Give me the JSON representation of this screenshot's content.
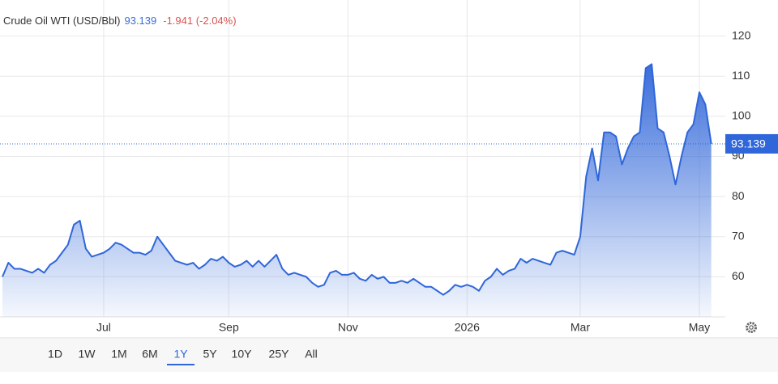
{
  "chart_data": {
    "type": "area",
    "title": "Crude Oil WTI (USD/Bbl)",
    "price": "93.139",
    "change": "-1.941 (-2.04%)",
    "color": "#2f66d9",
    "grid": true,
    "ylim": [
      50,
      129
    ],
    "yticks": [
      60,
      70,
      80,
      90,
      100,
      110,
      120
    ],
    "categories": [
      null,
      null,
      null,
      null,
      null,
      null,
      null,
      null,
      null,
      null,
      null,
      null,
      null,
      null,
      null,
      null,
      null,
      "Jul",
      null,
      null,
      null,
      null,
      null,
      null,
      null,
      null,
      null,
      null,
      null,
      null,
      null,
      null,
      null,
      null,
      null,
      null,
      null,
      null,
      "Sep",
      null,
      null,
      null,
      null,
      null,
      null,
      null,
      null,
      null,
      null,
      null,
      null,
      null,
      null,
      null,
      null,
      null,
      null,
      null,
      "Nov",
      null,
      null,
      null,
      null,
      null,
      null,
      null,
      null,
      null,
      null,
      null,
      null,
      null,
      null,
      null,
      null,
      null,
      null,
      null,
      "2026",
      null,
      null,
      null,
      null,
      null,
      null,
      null,
      null,
      null,
      null,
      null,
      null,
      null,
      null,
      null,
      null,
      null,
      null,
      "Mar",
      null,
      null,
      null,
      null,
      null,
      null,
      null,
      null,
      null,
      null,
      null,
      null,
      null,
      null,
      null,
      null,
      null,
      null,
      null,
      "May",
      null,
      null
    ],
    "values": [
      60,
      63.5,
      62,
      62,
      61.5,
      61,
      62,
      61,
      63,
      64,
      66,
      68,
      73,
      74,
      67,
      65,
      65.5,
      66,
      67,
      68.5,
      68,
      67,
      66,
      66,
      65.5,
      66.5,
      70,
      68,
      66,
      64,
      63.5,
      63,
      63.5,
      62,
      63,
      64.5,
      64,
      65,
      63.5,
      62.5,
      63,
      64,
      62.5,
      64,
      62.5,
      64,
      65.5,
      62,
      60.5,
      61,
      60.5,
      60,
      58.5,
      57.5,
      58,
      61,
      61.5,
      60.5,
      60.5,
      61,
      59.5,
      59,
      60.5,
      59.5,
      60,
      58.5,
      58.5,
      59,
      58.5,
      59.5,
      58.5,
      57.5,
      57.5,
      56.5,
      55.5,
      56.5,
      58,
      57.5,
      58,
      57.5,
      56.5,
      59,
      60,
      62,
      60.5,
      61.5,
      62,
      64.5,
      63.5,
      64.5,
      64,
      63.5,
      63,
      66,
      66.5,
      66,
      65.5,
      70,
      85,
      92,
      84,
      96,
      96,
      95,
      88,
      92,
      95,
      96,
      112,
      113,
      97,
      96,
      90,
      83,
      90,
      96,
      98,
      106,
      103,
      93.139
    ],
    "ranges": [
      "1D",
      "1W",
      "1M",
      "6M",
      "1Y",
      "5Y",
      "10Y",
      "25Y",
      "All"
    ],
    "selected_range": "1Y"
  }
}
